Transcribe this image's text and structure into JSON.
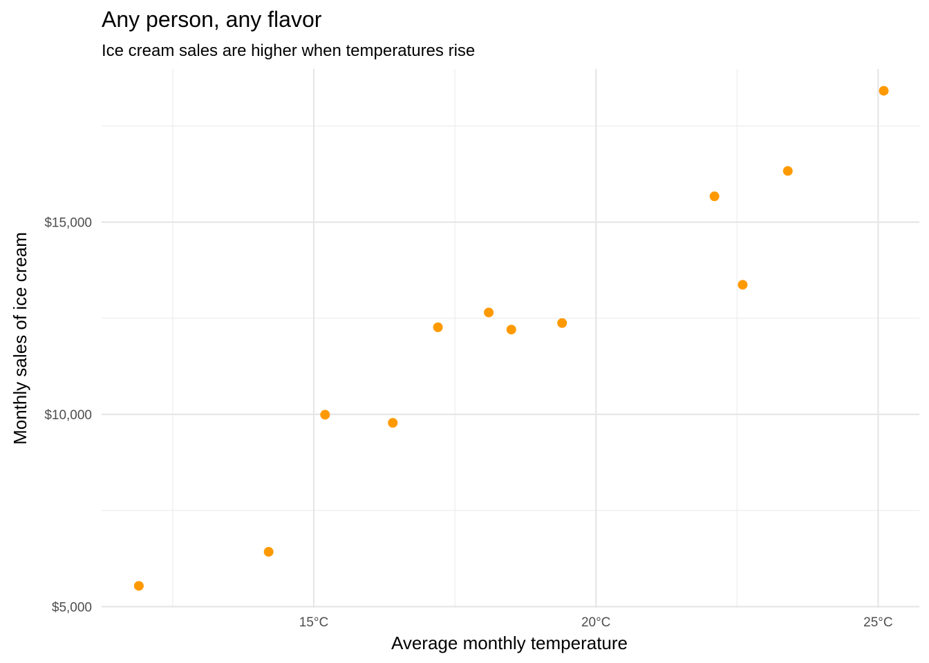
{
  "chart_data": {
    "type": "scatter",
    "title": "Any person, any flavor",
    "subtitle": "Ice cream sales are higher when temperatures rise",
    "xlabel": "Average monthly temperature",
    "ylabel": "Monthly sales of ice cream",
    "x_ticks": [
      {
        "value": 15,
        "label": "15°C"
      },
      {
        "value": 20,
        "label": "20°C"
      },
      {
        "value": 25,
        "label": "25°C"
      }
    ],
    "y_ticks": [
      {
        "value": 5000,
        "label": "$5,000"
      },
      {
        "value": 10000,
        "label": "$10,000"
      },
      {
        "value": 15000,
        "label": "$15,000"
      }
    ],
    "x_minor_ticks": [
      12.5,
      17.5,
      22.5
    ],
    "y_minor_ticks": [
      7500,
      12500,
      17500
    ],
    "xlim": [
      11.24,
      25.73
    ],
    "ylim": [
      4971,
      18980
    ],
    "grid": true,
    "point_color": "#FF9900",
    "points": [
      {
        "x": 11.9,
        "y": 5540
      },
      {
        "x": 14.2,
        "y": 6425
      },
      {
        "x": 15.2,
        "y": 9990
      },
      {
        "x": 16.4,
        "y": 9780
      },
      {
        "x": 17.2,
        "y": 12265
      },
      {
        "x": 18.1,
        "y": 12650
      },
      {
        "x": 18.5,
        "y": 12205
      },
      {
        "x": 19.4,
        "y": 12375
      },
      {
        "x": 22.1,
        "y": 15670
      },
      {
        "x": 22.6,
        "y": 13370
      },
      {
        "x": 23.4,
        "y": 16330
      },
      {
        "x": 25.1,
        "y": 18415
      }
    ]
  }
}
